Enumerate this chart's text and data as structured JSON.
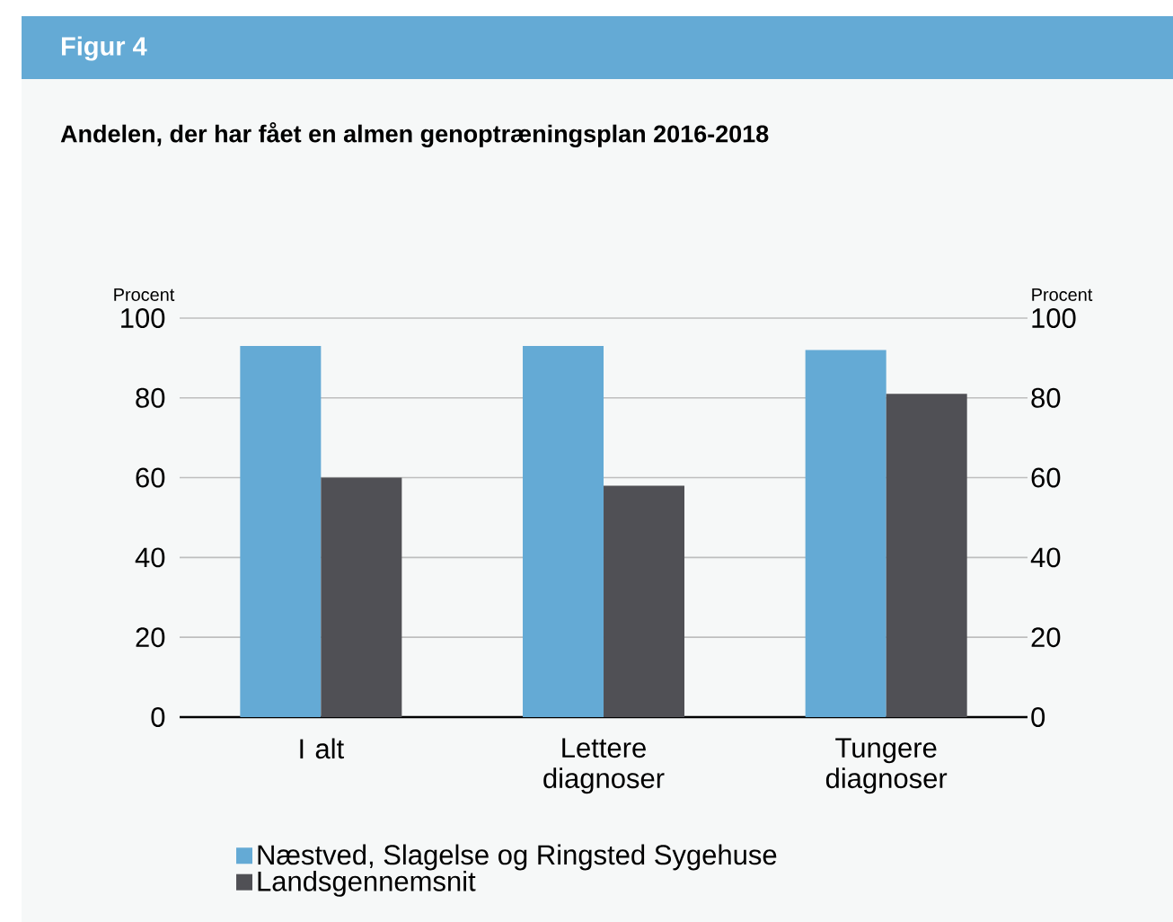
{
  "chart_data": {
    "type": "bar",
    "title": "Figur 4",
    "subtitle": "Andelen, der har fået en almen genoptræningsplan 2016-2018",
    "ylabel": "Procent",
    "y2label": "Procent",
    "categories": [
      "I alt",
      "Lettere diagnoser",
      "Tungere diagnoser"
    ],
    "series": [
      {
        "name": "Næstved, Slagelse og Ringsted Sygehuse",
        "color": "#64aad5",
        "values": [
          93,
          93,
          92
        ]
      },
      {
        "name": "Landsgennemsnit",
        "color": "#505055",
        "values": [
          60,
          58,
          81
        ]
      }
    ],
    "ylim": [
      0,
      100
    ],
    "yticks": [
      0,
      20,
      40,
      60,
      80,
      100
    ],
    "y2lim": [
      0,
      100
    ],
    "y2ticks": [
      0,
      20,
      40,
      60,
      80,
      100
    ],
    "grid": "y",
    "legend": "bottom"
  }
}
